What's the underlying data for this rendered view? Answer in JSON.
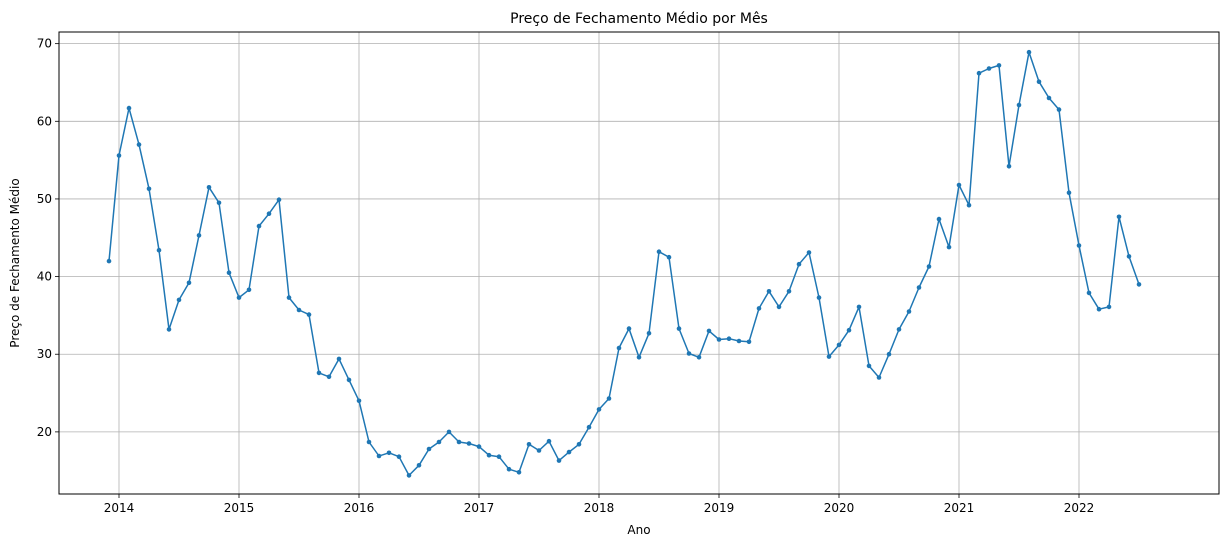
{
  "chart_data": {
    "type": "line",
    "title": "Preço de Fechamento Médio por Mês",
    "xlabel": "Ano",
    "ylabel": "Preço de Fechamento Médio",
    "x_ticks": [
      "2014",
      "2015",
      "2016",
      "2017",
      "2018",
      "2019",
      "2020",
      "2021",
      "2022"
    ],
    "y_ticks": [
      20,
      30,
      40,
      50,
      60,
      70
    ],
    "xlim": [
      "2013-07",
      "2022-12"
    ],
    "ylim": [
      12,
      71.5
    ],
    "grid": true,
    "color": "#1f77b4",
    "series": [
      {
        "x": [
          "2013-12",
          "2014-01",
          "2014-02",
          "2014-03",
          "2014-04",
          "2014-05",
          "2014-06",
          "2014-07",
          "2014-08",
          "2014-09",
          "2014-10",
          "2014-11",
          "2014-12",
          "2015-01",
          "2015-02",
          "2015-03",
          "2015-04",
          "2015-05",
          "2015-06",
          "2015-07",
          "2015-08",
          "2015-09",
          "2015-10",
          "2015-11",
          "2015-12",
          "2016-01",
          "2016-02",
          "2016-03",
          "2016-04",
          "2016-05",
          "2016-06",
          "2016-07",
          "2016-08",
          "2016-09",
          "2016-10",
          "2016-11",
          "2016-12",
          "2017-01",
          "2017-02",
          "2017-03",
          "2017-04",
          "2017-05",
          "2017-06",
          "2017-07",
          "2017-08",
          "2017-09",
          "2017-10",
          "2017-11",
          "2017-12",
          "2018-01",
          "2018-02",
          "2018-03",
          "2018-04",
          "2018-05",
          "2018-06",
          "2018-07",
          "2018-08",
          "2018-09",
          "2018-10",
          "2018-11",
          "2018-12",
          "2019-01",
          "2019-02",
          "2019-03",
          "2019-04",
          "2019-05",
          "2019-06",
          "2019-07",
          "2019-08",
          "2019-09",
          "2019-10",
          "2019-11",
          "2019-12",
          "2020-01",
          "2020-02",
          "2020-03",
          "2020-04",
          "2020-05",
          "2020-06",
          "2020-07",
          "2020-08",
          "2020-09",
          "2020-10",
          "2020-11",
          "2020-12",
          "2021-01",
          "2021-02",
          "2021-03",
          "2021-04",
          "2021-05",
          "2021-06",
          "2021-07",
          "2021-08",
          "2021-09",
          "2021-10",
          "2021-11",
          "2021-12",
          "2022-01",
          "2022-02",
          "2022-03",
          "2022-04",
          "2022-05",
          "2022-06",
          "2022-07"
        ],
        "y": [
          42.0,
          55.6,
          61.7,
          57.0,
          51.3,
          43.4,
          33.2,
          37.0,
          39.2,
          45.3,
          51.5,
          49.5,
          40.5,
          37.3,
          38.3,
          46.5,
          48.1,
          49.9,
          37.3,
          35.7,
          35.1,
          27.6,
          27.1,
          29.4,
          26.7,
          24.0,
          18.7,
          16.9,
          17.3,
          16.8,
          14.4,
          15.7,
          17.8,
          18.7,
          20.0,
          18.7,
          18.5,
          18.1,
          17.0,
          16.8,
          15.2,
          14.8,
          18.4,
          17.6,
          18.8,
          16.3,
          17.4,
          18.4,
          20.6,
          22.9,
          24.3,
          30.8,
          33.3,
          29.6,
          32.7,
          43.2,
          42.5,
          33.3,
          30.1,
          29.6,
          33.0,
          31.9,
          32.0,
          31.7,
          31.6,
          35.9,
          38.1,
          36.1,
          38.1,
          41.6,
          43.1,
          37.3,
          29.7,
          31.2,
          33.1,
          36.1,
          28.5,
          27.0,
          30.0,
          33.2,
          35.5,
          38.6,
          41.3,
          47.4,
          43.8,
          51.8,
          49.2,
          66.2,
          66.8,
          67.2,
          54.2,
          62.1,
          68.9,
          65.1,
          63.0,
          61.5,
          50.8,
          44.0,
          37.9,
          35.8,
          36.1,
          47.7,
          42.6,
          39.0
        ]
      }
    ]
  }
}
